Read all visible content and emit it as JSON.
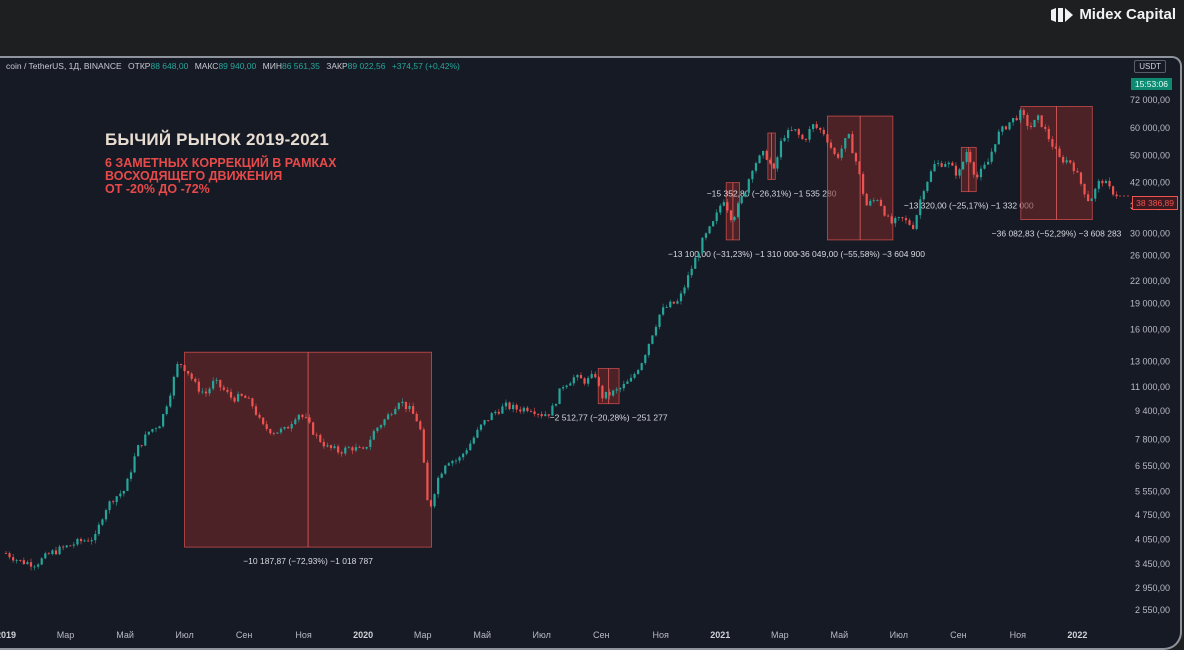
{
  "brand": {
    "name": "Midex Capital",
    "logo_icon": "midex-logo-icon"
  },
  "header": {
    "symbol": "coin / TetherUS, 1Д, BINANCE",
    "open_label": "ОТКР",
    "open_value": "88 648,00",
    "high_label": "МАКС",
    "high_value": "89 940,00",
    "low_label": "МИН",
    "low_value": "86 561,35",
    "close_label": "ЗАКР",
    "close_value": "89 022,56",
    "change": "+374,57 (+0,42%)"
  },
  "currency": "USDT",
  "time": "15:53:06",
  "current_price": "38 386,89",
  "headline": {
    "title": "БЫЧИЙ РЫНОК 2019-2021",
    "line1": "6 ЗАМЕТНЫХ КОРРЕКЦИЙ В РАМКАХ",
    "line2": "ВОСХОДЯЩЕГО ДВИЖЕНИЯ",
    "line3": "ОТ -20% ДО -72%"
  },
  "colors": {
    "up": "#26a69a",
    "down": "#ef5350",
    "box_fill": "#7a2a2a",
    "box_border": "#c74a4a",
    "background": "#161a25"
  },
  "chart_data": {
    "type": "line",
    "scale": "log",
    "y_ticks": [
      2550,
      2950,
      3450,
      4050,
      4750,
      5550,
      6550,
      7800,
      9400,
      11000,
      13000,
      16000,
      19000,
      22000,
      26000,
      30000,
      36000,
      42000,
      50000,
      60000,
      72000
    ],
    "y_tick_labels": [
      "2 550,00",
      "2 950,00",
      "3 450,00",
      "4 050,00",
      "4 750,00",
      "5 550,00",
      "6 550,00",
      "7 800,00",
      "9 400,00",
      "11 000,00",
      "13 000,00",
      "16 000,00",
      "19 000,00",
      "22 000,00",
      "26 000,00",
      "30 000,00",
      "36 000,00",
      "42 000,00",
      "50 000,00",
      "60 000,00",
      "72 000,00"
    ],
    "x_labels": [
      {
        "label": "2019",
        "t": 0,
        "bold": true
      },
      {
        "label": "Мар",
        "t": 2
      },
      {
        "label": "Май",
        "t": 4
      },
      {
        "label": "Июл",
        "t": 6
      },
      {
        "label": "Сен",
        "t": 8
      },
      {
        "label": "Ноя",
        "t": 10
      },
      {
        "label": "2020",
        "t": 12,
        "bold": true
      },
      {
        "label": "Мар",
        "t": 14
      },
      {
        "label": "Май",
        "t": 16
      },
      {
        "label": "Июл",
        "t": 18
      },
      {
        "label": "Сен",
        "t": 20
      },
      {
        "label": "Ноя",
        "t": 22
      },
      {
        "label": "2021",
        "t": 24,
        "bold": true
      },
      {
        "label": "Мар",
        "t": 26
      },
      {
        "label": "Май",
        "t": 28
      },
      {
        "label": "Июл",
        "t": 30
      },
      {
        "label": "Сен",
        "t": 32
      },
      {
        "label": "Ноя",
        "t": 34
      },
      {
        "label": "2022",
        "t": 36,
        "bold": true
      }
    ],
    "series": [
      {
        "points": [
          [
            0,
            3700
          ],
          [
            0.5,
            3500
          ],
          [
            1,
            3450
          ],
          [
            1.5,
            3700
          ],
          [
            2,
            3850
          ],
          [
            2.5,
            4000
          ],
          [
            3,
            4100
          ],
          [
            3.3,
            4900
          ],
          [
            3.6,
            5300
          ],
          [
            4,
            5600
          ],
          [
            4.4,
            7300
          ],
          [
            4.8,
            8200
          ],
          [
            5.2,
            8700
          ],
          [
            5.5,
            10500
          ],
          [
            5.8,
            13000
          ],
          [
            6.1,
            12200
          ],
          [
            6.4,
            11000
          ],
          [
            6.7,
            10500
          ],
          [
            7,
            11400
          ],
          [
            7.3,
            10800
          ],
          [
            7.6,
            10200
          ],
          [
            8,
            10300
          ],
          [
            8.3,
            9700
          ],
          [
            8.6,
            8500
          ],
          [
            9,
            8200
          ],
          [
            9.4,
            8300
          ],
          [
            9.8,
            9300
          ],
          [
            10.1,
            8800
          ],
          [
            10.4,
            8000
          ],
          [
            10.8,
            7400
          ],
          [
            11.2,
            7200
          ],
          [
            11.6,
            7400
          ],
          [
            12,
            7200
          ],
          [
            12.4,
            8300
          ],
          [
            12.8,
            9000
          ],
          [
            13.2,
            10100
          ],
          [
            13.6,
            9400
          ],
          [
            13.9,
            8600
          ],
          [
            14.2,
            4800
          ],
          [
            14.5,
            6000
          ],
          [
            14.8,
            6800
          ],
          [
            15.2,
            6800
          ],
          [
            15.6,
            7600
          ],
          [
            16,
            8600
          ],
          [
            16.4,
            9300
          ],
          [
            16.8,
            9700
          ],
          [
            17.2,
            9500
          ],
          [
            17.6,
            9600
          ],
          [
            18,
            9200
          ],
          [
            18.3,
            9300
          ],
          [
            18.7,
            11100
          ],
          [
            19.1,
            11700
          ],
          [
            19.5,
            11400
          ],
          [
            19.8,
            11900
          ],
          [
            20,
            10300
          ],
          [
            20.3,
            10500
          ],
          [
            20.6,
            10800
          ],
          [
            21,
            11500
          ],
          [
            21.4,
            13200
          ],
          [
            21.7,
            15500
          ],
          [
            22,
            18000
          ],
          [
            22.3,
            18800
          ],
          [
            22.6,
            19200
          ],
          [
            23,
            23500
          ],
          [
            23.4,
            28500
          ],
          [
            23.8,
            32500
          ],
          [
            24.1,
            38000
          ],
          [
            24.4,
            33000
          ],
          [
            24.8,
            39000
          ],
          [
            25.1,
            47000
          ],
          [
            25.5,
            51000
          ],
          [
            25.8,
            45000
          ],
          [
            26.1,
            57000
          ],
          [
            26.5,
            59000
          ],
          [
            26.8,
            55000
          ],
          [
            27.1,
            61000
          ],
          [
            27.5,
            58000
          ],
          [
            27.9,
            49000
          ],
          [
            28.3,
            57000
          ],
          [
            28.6,
            47000
          ],
          [
            28.9,
            36000
          ],
          [
            29.3,
            38000
          ],
          [
            29.7,
            32000
          ],
          [
            30.1,
            33000
          ],
          [
            30.5,
            31500
          ],
          [
            30.8,
            40000
          ],
          [
            31.2,
            47000
          ],
          [
            31.6,
            48000
          ],
          [
            32,
            44000
          ],
          [
            32.3,
            52000
          ],
          [
            32.6,
            43000
          ],
          [
            33,
            48000
          ],
          [
            33.3,
            57000
          ],
          [
            33.7,
            62000
          ],
          [
            34.1,
            66000
          ],
          [
            34.4,
            60000
          ],
          [
            34.7,
            64000
          ],
          [
            35,
            57000
          ],
          [
            35.4,
            49000
          ],
          [
            35.8,
            48000
          ],
          [
            36.1,
            42000
          ],
          [
            36.4,
            37000
          ],
          [
            36.8,
            43000
          ],
          [
            37.1,
            40000
          ],
          [
            37.4,
            38386.89
          ]
        ]
      }
    ],
    "corrections": [
      {
        "t0": 6.0,
        "t1": 14.3,
        "high": 13800,
        "low": 3850,
        "label": "−10 187,87 (−72,93%) −1 018 787"
      },
      {
        "t0": 19.9,
        "t1": 20.6,
        "high": 12400,
        "low": 9850,
        "label": "−2 512,77 (−20,28%) −251 277"
      },
      {
        "t0": 24.2,
        "t1": 24.65,
        "high": 41900,
        "low": 28800,
        "label": "−13 100,00 (−31,23%) −1 310 000"
      },
      {
        "t0": 25.6,
        "t1": 25.85,
        "high": 58000,
        "low": 42800,
        "label": "−15 352,80 (−26,31%) −1 535 280"
      },
      {
        "t0": 27.6,
        "t1": 29.8,
        "high": 64800,
        "low": 28800,
        "label": "−36 049,00 (−55,58%) −3 604 900"
      },
      {
        "t0": 32.1,
        "t1": 32.6,
        "high": 52800,
        "low": 39500,
        "label": "−13 320,00 (−25,17%) −1 332 000"
      },
      {
        "t0": 34.1,
        "t1": 36.5,
        "high": 69000,
        "low": 32900,
        "label": "−36 082,83 (−52,29%) −3 608 283"
      }
    ]
  }
}
